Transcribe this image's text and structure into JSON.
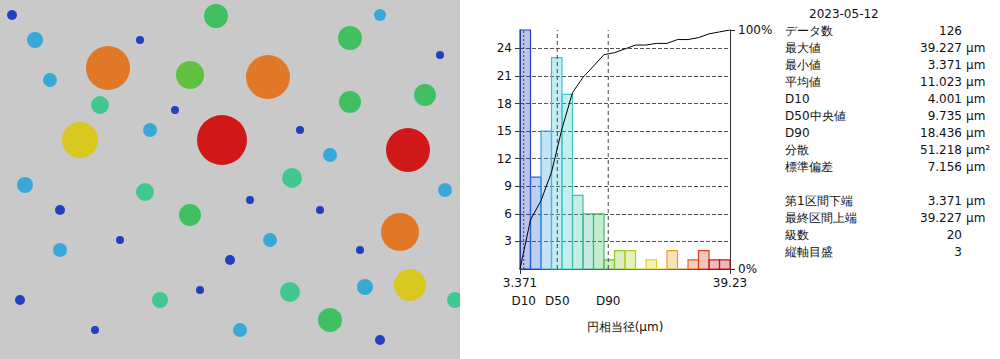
{
  "chart_data": {
    "type": "histogram",
    "xlabel": "円相当径(μm)",
    "bins": [
      3.371,
      5.164,
      6.957,
      8.749,
      10.542,
      12.335,
      14.128,
      15.921,
      17.713,
      19.506,
      21.299,
      23.092,
      24.885,
      26.678,
      28.47,
      30.263,
      32.056,
      33.849,
      35.642,
      37.434,
      39.227
    ],
    "xlim": [
      3.371,
      39.227
    ],
    "xticks": [
      {
        "value": 3.371,
        "label": "3.371"
      },
      {
        "value": 39.227,
        "label": "39.23"
      }
    ],
    "ylim": [
      0,
      26
    ],
    "yticks": [
      3,
      6,
      9,
      12,
      15,
      18,
      21,
      24
    ],
    "y2lim": [
      0,
      100
    ],
    "y2ticks": [
      {
        "value": 0,
        "label": "0%"
      },
      {
        "value": 100,
        "label": "100%"
      }
    ],
    "grid": true,
    "series": [
      {
        "type": "bar",
        "values": [
          26,
          10,
          15,
          23,
          19,
          8,
          6,
          6,
          1,
          2,
          2,
          0,
          1,
          0,
          2,
          0,
          1,
          2,
          1,
          1
        ],
        "colors": [
          "#1f3fbf",
          "#2a5fcf",
          "#3a9fe0",
          "#3cc0d8",
          "#40c8c8",
          "#40c0a8",
          "#40b898",
          "#40c060",
          "#60c040",
          "#90c830",
          "#b0d020",
          "#c8d020",
          "#e0d020",
          "#e8c020",
          "#e8a020",
          "#e08020",
          "#e06020",
          "#d84020",
          "#d02020",
          "#c01818"
        ]
      },
      {
        "type": "line",
        "axis": "y2",
        "color": "#000000",
        "values": [
          0,
          20.6,
          28.6,
          40.5,
          58.7,
          73.8,
          80.2,
          84.9,
          89.7,
          90.5,
          92.1,
          93.7,
          93.7,
          94.4,
          94.4,
          96.0,
          96.0,
          96.8,
          98.4,
          99.2,
          100
        ]
      }
    ],
    "markers": [
      {
        "label": "D10",
        "value": 4.001
      },
      {
        "label": "D50",
        "value": 9.735
      },
      {
        "label": "D90",
        "value": 18.436
      }
    ]
  },
  "stats": {
    "date": "2023-05-12",
    "groups": [
      [
        {
          "label": "データ数",
          "value": 126
        },
        {
          "label": "最大値",
          "value": 39.227,
          "unit": "μm"
        },
        {
          "label": "最小値",
          "value": 3.371,
          "unit": "μm"
        },
        {
          "label": "平均値",
          "value": 11.023,
          "unit": "μm"
        },
        {
          "label": "D10",
          "value": 4.001,
          "unit": "μm"
        },
        {
          "label": "D50中央値",
          "value": 9.735,
          "unit": "μm"
        },
        {
          "label": "D90",
          "value": 18.436,
          "unit": "μm"
        },
        {
          "label": "分散",
          "value": 51.218,
          "unit": "μm²"
        },
        {
          "label": "標準偏差",
          "value": 7.156,
          "unit": "μm"
        }
      ],
      [
        {
          "label": "第1区間下端",
          "value": 3.371,
          "unit": "μm"
        },
        {
          "label": "最終区間上端",
          "value": 39.227,
          "unit": "μm"
        },
        {
          "label": "級数",
          "value": 20
        },
        {
          "label": "縦軸目盛",
          "value": 3
        }
      ]
    ]
  }
}
